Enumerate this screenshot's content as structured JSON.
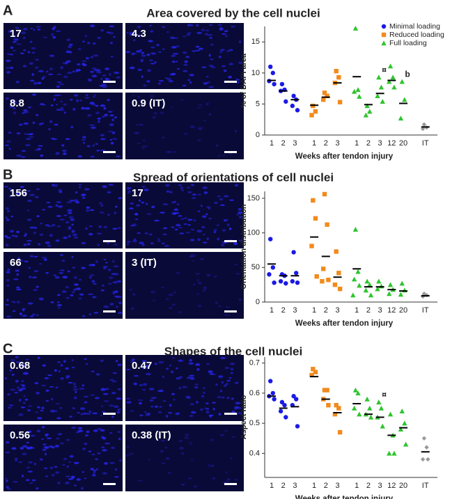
{
  "chart_data": [
    {
      "type": "strip",
      "panel": "A",
      "title": "Area covered by the cell nuclei",
      "images": [
        "17",
        "4.3",
        "8.8",
        "0.9 (IT)"
      ],
      "xlabel": "Weeks after tendon injury",
      "ylabel": "% of DAPI area",
      "categories": [
        "1",
        "2",
        "3",
        "1",
        "2",
        "3",
        "1",
        "2",
        "3",
        "12",
        "20",
        "IT"
      ],
      "ylim": [
        0,
        17.5
      ],
      "yticks": [
        0,
        5,
        10,
        15
      ],
      "legend": "upper right",
      "series": [
        {
          "name": "Minimal loading",
          "color": "#1a1ae6",
          "marker": "circle",
          "values": [
            [
              11,
              10,
              8.7,
              8.2
            ],
            [
              8.2,
              7.3,
              7.1,
              5.4
            ],
            [
              6.3,
              5.7,
              4.7,
              4.0
            ],
            null,
            null,
            null,
            null,
            null,
            null,
            null,
            null,
            null
          ],
          "means": [
            8.8,
            7.1,
            5.7,
            null,
            null,
            null,
            null,
            null,
            null,
            null,
            null,
            null
          ]
        },
        {
          "name": "Reduced loading",
          "color": "#f28a1c",
          "marker": "square",
          "values": [
            null,
            null,
            null,
            [
              4.7,
              3.8,
              3.2
            ],
            [
              6.8,
              6.3,
              5.7
            ],
            [
              10.3,
              9.3,
              8.4,
              5.3
            ],
            null,
            null,
            null,
            null,
            null,
            null
          ],
          "means": [
            null,
            null,
            null,
            4.8,
            6.1,
            8.4,
            null,
            null,
            null,
            null,
            null,
            null
          ]
        },
        {
          "name": "Full loading",
          "color": "#2ec42e",
          "marker": "triangle",
          "values": [
            null,
            null,
            null,
            null,
            null,
            null,
            [
              17.2,
              7.3,
              7.0,
              6.2
            ],
            [
              4.7,
              3.8,
              3.2
            ],
            [
              9.3,
              7.7,
              6.3,
              5.4
            ],
            [
              11.1,
              9.3,
              8.6,
              7.7
            ],
            [
              8.6,
              5.7,
              2.7
            ],
            null
          ],
          "means": [
            null,
            null,
            null,
            null,
            null,
            null,
            9.4,
            4.9,
            6.7,
            8.8,
            5.1,
            null
          ],
          "annotations": [
            null,
            null,
            null,
            null,
            null,
            null,
            null,
            null,
            "¤",
            null,
            "b",
            null
          ]
        },
        {
          "color": "#999999",
          "marker": "diamond",
          "values": [
            null,
            null,
            null,
            null,
            null,
            null,
            null,
            null,
            null,
            null,
            null,
            [
              1.7,
              1.2,
              1.0
            ]
          ],
          "means": [
            null,
            null,
            null,
            null,
            null,
            null,
            null,
            null,
            null,
            null,
            null,
            1.3
          ]
        }
      ]
    },
    {
      "type": "strip",
      "panel": "B",
      "title": "Spread of orientations of cell nuclei",
      "images": [
        "156",
        "17",
        "66",
        "3 (IT)"
      ],
      "xlabel": "Weeks after tendon injury",
      "ylabel": "Orientation distribution",
      "categories": [
        "1",
        "2",
        "3",
        "1",
        "2",
        "3",
        "1",
        "2",
        "3",
        "12",
        "20",
        "IT"
      ],
      "ylim": [
        0,
        160
      ],
      "yticks": [
        0,
        50,
        100,
        150
      ],
      "series": [
        {
          "color": "#1a1ae6",
          "marker": "circle",
          "values": [
            [
              91,
              50,
              40,
              28
            ],
            [
              40,
              38,
              30,
              27
            ],
            [
              72,
              42,
              30,
              28
            ],
            null,
            null,
            null,
            null,
            null,
            null,
            null,
            null,
            null
          ],
          "means": [
            55,
            38,
            38,
            null,
            null,
            null,
            null,
            null,
            null,
            null,
            null,
            null
          ]
        },
        {
          "color": "#f28a1c",
          "marker": "square",
          "values": [
            null,
            null,
            null,
            [
              147,
              121,
              81,
              37
            ],
            [
              156,
              112,
              48,
              32,
              30
            ],
            [
              73,
              42,
              25,
              19
            ],
            null,
            null,
            null,
            null,
            null,
            null
          ],
          "means": [
            null,
            null,
            null,
            94,
            66,
            36,
            null,
            null,
            null,
            null,
            null,
            null
          ]
        },
        {
          "color": "#2ec42e",
          "marker": "triangle",
          "values": [
            null,
            null,
            null,
            null,
            null,
            null,
            [
              105,
              44,
              33,
              24,
              10
            ],
            [
              30,
              25,
              17,
              10
            ],
            [
              30,
              23,
              19
            ],
            [
              25,
              18,
              12
            ],
            [
              27,
              17,
              11
            ],
            null
          ],
          "means": [
            null,
            null,
            null,
            null,
            null,
            null,
            48,
            22,
            22,
            18,
            16,
            null
          ]
        },
        {
          "color": "#999999",
          "marker": "diamond",
          "values": [
            null,
            null,
            null,
            null,
            null,
            null,
            null,
            null,
            null,
            null,
            null,
            [
              12,
              10,
              8
            ]
          ],
          "means": [
            null,
            null,
            null,
            null,
            null,
            null,
            null,
            null,
            null,
            null,
            null,
            9
          ]
        }
      ]
    },
    {
      "type": "strip",
      "panel": "C",
      "title": "Shapes of the cell nuclei",
      "images": [
        "0.68",
        "0.47",
        "0.56",
        "0.38 (IT)"
      ],
      "xlabel": "Weeks after tendon injury",
      "ylabel": "Aspect ratio",
      "categories": [
        "1",
        "2",
        "3",
        "1",
        "2",
        "3",
        "1",
        "2",
        "3",
        "12",
        "20",
        "IT"
      ],
      "ylim": [
        0.32,
        0.72
      ],
      "yticks": [
        0.4,
        0.5,
        0.6,
        0.7
      ],
      "series": [
        {
          "color": "#1a1ae6",
          "marker": "circle",
          "values": [
            [
              0.64,
              0.6,
              0.59,
              0.58
            ],
            [
              0.57,
              0.56,
              0.54,
              0.52
            ],
            [
              0.59,
              0.58,
              0.56,
              0.49
            ],
            null,
            null,
            null,
            null,
            null,
            null,
            null,
            null,
            null
          ],
          "means": [
            0.59,
            0.55,
            0.555,
            null,
            null,
            null,
            null,
            null,
            null,
            null,
            null,
            null
          ]
        },
        {
          "color": "#f28a1c",
          "marker": "square",
          "values": [
            null,
            null,
            null,
            [
              0.68,
              0.67,
              0.66
            ],
            [
              0.61,
              0.61,
              0.58,
              0.56
            ],
            [
              0.56,
              0.55,
              0.53,
              0.47
            ],
            null,
            null,
            null,
            null,
            null,
            null
          ],
          "means": [
            null,
            null,
            null,
            0.655,
            0.58,
            0.535,
            null,
            null,
            null,
            null,
            null,
            null
          ]
        },
        {
          "color": "#2ec42e",
          "marker": "triangle",
          "values": [
            null,
            null,
            null,
            null,
            null,
            null,
            [
              0.61,
              0.6,
              0.55,
              0.53
            ],
            [
              0.58,
              0.55,
              0.53,
              0.52
            ],
            [
              0.57,
              0.55,
              0.52,
              0.49
            ],
            [
              0.53,
              0.46,
              0.4,
              0.4
            ],
            [
              0.54,
              0.5,
              0.48,
              0.43
            ],
            null
          ],
          "means": [
            null,
            null,
            null,
            null,
            null,
            null,
            0.565,
            0.53,
            0.52,
            0.46,
            0.485,
            null
          ],
          "annotations": [
            null,
            null,
            null,
            null,
            null,
            null,
            null,
            null,
            "¤",
            null,
            null,
            null
          ]
        },
        {
          "color": "#999999",
          "marker": "diamond",
          "values": [
            null,
            null,
            null,
            null,
            null,
            null,
            null,
            null,
            null,
            null,
            null,
            [
              0.45,
              0.42,
              0.38,
              0.38
            ]
          ],
          "means": [
            null,
            null,
            null,
            null,
            null,
            null,
            null,
            null,
            null,
            null,
            null,
            0.405
          ]
        }
      ]
    }
  ]
}
